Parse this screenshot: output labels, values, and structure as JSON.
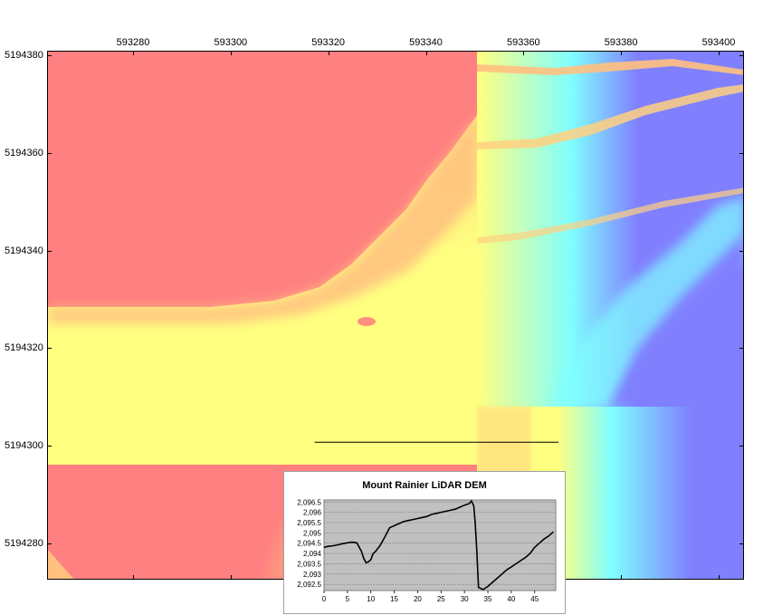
{
  "map": {
    "x_ticks": [
      {
        "label": "593280",
        "value": 593280
      },
      {
        "label": "593300",
        "value": 593300
      },
      {
        "label": "593320",
        "value": 593320
      },
      {
        "label": "593340",
        "value": 593340
      },
      {
        "label": "593360",
        "value": 593360
      },
      {
        "label": "593380",
        "value": 593380
      },
      {
        "label": "593400",
        "value": 593400
      }
    ],
    "y_ticks": [
      {
        "label": "5194380",
        "value": 5194380
      },
      {
        "label": "5194360",
        "value": 5194360
      },
      {
        "label": "5194340",
        "value": 5194340
      },
      {
        "label": "5194320",
        "value": 5194320
      },
      {
        "label": "5194300",
        "value": 5194300
      },
      {
        "label": "5194280",
        "value": 5194280
      }
    ],
    "colors": {
      "high": "#ff8080",
      "mid": "#ffff80",
      "low_mid": "#80ffff",
      "low": "#8080ff"
    },
    "profile_line": {
      "x1": 593317,
      "x2": 593367,
      "y": 5194301
    }
  },
  "chart_data": {
    "type": "line",
    "title": "Mount Rainier LiDAR DEM",
    "xlabel": "",
    "ylabel": "",
    "x_ticks": [
      "0",
      "5",
      "10",
      "15",
      "20",
      "25",
      "30",
      "35",
      "40",
      "45"
    ],
    "y_ticks": [
      "2,092.5",
      "2,093",
      "2,093.5",
      "2,094",
      "2,094.5",
      "2,095",
      "2,095.5",
      "2,096",
      "2,096.5"
    ],
    "xlim": [
      0,
      49.5
    ],
    "ylim": [
      2092.2,
      2096.6
    ],
    "grid": true,
    "series": [
      {
        "x": [
          0,
          1,
          2,
          3,
          4,
          5,
          6,
          7,
          8,
          8.5,
          9,
          9.5,
          10,
          10.5,
          11,
          12,
          13,
          14,
          15,
          16,
          17,
          18,
          19,
          20,
          21,
          22,
          23,
          24,
          25,
          26,
          27,
          28,
          29,
          30,
          31,
          31.5,
          32,
          32.3,
          32.6,
          33,
          34,
          35,
          36,
          37,
          38,
          39,
          40,
          41,
          42,
          43,
          44,
          45,
          46,
          47,
          48,
          49
        ],
        "y": [
          2094.3,
          2094.35,
          2094.38,
          2094.42,
          2094.48,
          2094.52,
          2094.55,
          2094.52,
          2094.1,
          2093.75,
          2093.55,
          2093.6,
          2093.7,
          2094.0,
          2094.1,
          2094.4,
          2094.8,
          2095.25,
          2095.35,
          2095.45,
          2095.55,
          2095.6,
          2095.65,
          2095.7,
          2095.75,
          2095.8,
          2095.9,
          2095.95,
          2096.0,
          2096.05,
          2096.1,
          2096.15,
          2096.25,
          2096.35,
          2096.42,
          2096.55,
          2096.3,
          2095.5,
          2094.3,
          2092.35,
          2092.25,
          2092.4,
          2092.6,
          2092.8,
          2093.0,
          2093.2,
          2093.35,
          2093.5,
          2093.65,
          2093.8,
          2094.0,
          2094.3,
          2094.5,
          2094.7,
          2094.85,
          2095.05
        ]
      }
    ]
  }
}
